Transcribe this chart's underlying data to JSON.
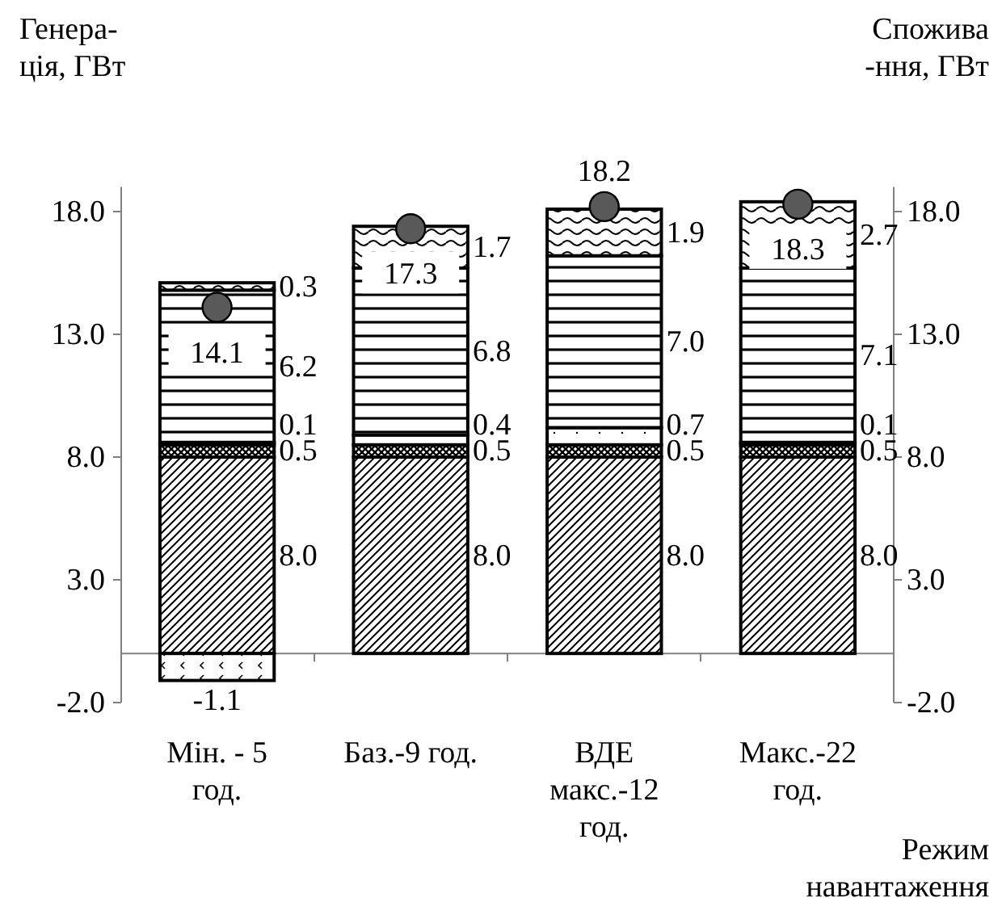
{
  "chart_data": {
    "type": "bar",
    "stacked": true,
    "categories": [
      "Мін. - 5\nгод.",
      "Баз.-9 год.",
      "ВДЕ\nмакс.-12\nгод.",
      "Макс.-22\nгод."
    ],
    "ylabel": "Генера-\nція, ГВт",
    "y2label": "Спожива\n-ння, ГВт",
    "xlabel": "Режим\nнавантаження",
    "ylim": [
      -2,
      19
    ],
    "yticks": [
      {
        "value": -2,
        "label": "-2.0"
      },
      {
        "value": 3,
        "label": "3.0"
      },
      {
        "value": 8,
        "label": "8.0"
      },
      {
        "value": 13,
        "label": "13.0"
      },
      {
        "value": 18,
        "label": "18.0"
      }
    ],
    "y2lim": [
      -2,
      19
    ],
    "y2ticks": [
      {
        "value": -2,
        "label": "-2.0"
      },
      {
        "value": 3,
        "label": "3.0"
      },
      {
        "value": 8,
        "label": "8.0"
      },
      {
        "value": 13,
        "label": "13.0"
      },
      {
        "value": 18,
        "label": "18.0"
      }
    ],
    "grid": false,
    "series": [
      {
        "color": "#000000",
        "values": [
          8.0,
          8.0,
          8.0,
          8.0
        ],
        "value_labels": [
          "8.0",
          "8.0",
          "8.0",
          "8.0"
        ]
      },
      {
        "color": "#000000",
        "values": [
          0.5,
          0.5,
          0.5,
          0.5
        ],
        "value_labels": [
          "0.5",
          "0.5",
          "0.5",
          "0.5"
        ]
      },
      {
        "color": "#000000",
        "values": [
          0.1,
          0.4,
          0.7,
          0.1
        ],
        "value_labels": [
          "0.1",
          "0.4",
          "0.7",
          "0.1"
        ]
      },
      {
        "color": "#000000",
        "values": [
          6.2,
          6.8,
          7.0,
          7.1
        ],
        "value_labels": [
          "6.2",
          "6.8",
          "7.0",
          "7.1"
        ]
      },
      {
        "color": "#000000",
        "values": [
          0.3,
          1.7,
          1.9,
          2.7
        ],
        "value_labels": [
          "0.3",
          "1.7",
          "1.9",
          "2.7"
        ]
      },
      {
        "color": "#000000",
        "values": [
          -1.1,
          null,
          null,
          null
        ],
        "value_labels": [
          "-1.1",
          null,
          null,
          null
        ]
      },
      {
        "type": "scatter",
        "marker": "circle",
        "color": "#595959",
        "values": [
          14.1,
          17.3,
          18.2,
          18.3
        ],
        "data_labels": true
      }
    ]
  }
}
